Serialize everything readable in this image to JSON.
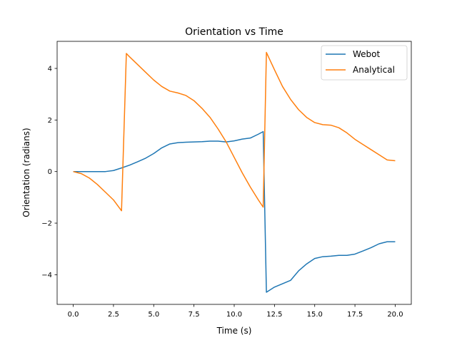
{
  "chart_data": {
    "type": "line",
    "title": "Orientation vs Time",
    "xlabel": "Time (s)",
    "ylabel": "Orientation (radians)",
    "xlim": [
      -1.0,
      21.0
    ],
    "ylim": [
      -5.15,
      5.05
    ],
    "xticks": [
      0.0,
      2.5,
      5.0,
      7.5,
      10.0,
      12.5,
      15.0,
      17.5,
      20.0
    ],
    "xtick_labels": [
      "0.0",
      "2.5",
      "5.0",
      "7.5",
      "10.0",
      "12.5",
      "15.0",
      "17.5",
      "20.0"
    ],
    "yticks": [
      -4,
      -2,
      0,
      2,
      4
    ],
    "ytick_labels": [
      "−4",
      "−2",
      "0",
      "2",
      "4"
    ],
    "grid": false,
    "legend": "top-right",
    "series": [
      {
        "name": "Webot",
        "color": "#1f77b4",
        "points": [
          [
            0,
            0
          ],
          [
            0.5,
            0
          ],
          [
            1,
            0
          ],
          [
            1.5,
            0
          ],
          [
            2,
            0
          ],
          [
            2.5,
            0.04
          ],
          [
            3,
            0.14
          ],
          [
            3.5,
            0.25
          ],
          [
            4,
            0.38
          ],
          [
            4.5,
            0.52
          ],
          [
            5,
            0.7
          ],
          [
            5.5,
            0.92
          ],
          [
            6,
            1.07
          ],
          [
            6.5,
            1.12
          ],
          [
            7,
            1.14
          ],
          [
            7.5,
            1.15
          ],
          [
            8,
            1.16
          ],
          [
            8.5,
            1.18
          ],
          [
            9,
            1.18
          ],
          [
            9.5,
            1.15
          ],
          [
            10,
            1.19
          ],
          [
            10.5,
            1.26
          ],
          [
            11,
            1.3
          ],
          [
            11.5,
            1.45
          ],
          [
            11.8,
            1.55
          ],
          [
            12.0,
            -4.68
          ],
          [
            12.5,
            -4.48
          ],
          [
            13,
            -4.35
          ],
          [
            13.5,
            -4.22
          ],
          [
            14,
            -3.85
          ],
          [
            14.5,
            -3.58
          ],
          [
            15,
            -3.37
          ],
          [
            15.5,
            -3.3
          ],
          [
            16,
            -3.28
          ],
          [
            16.5,
            -3.25
          ],
          [
            17,
            -3.25
          ],
          [
            17.5,
            -3.2
          ],
          [
            18,
            -3.08
          ],
          [
            18.5,
            -2.95
          ],
          [
            19,
            -2.8
          ],
          [
            19.5,
            -2.72
          ],
          [
            20,
            -2.72
          ]
        ]
      },
      {
        "name": "Analytical",
        "color": "#ff7f0e",
        "points": [
          [
            0,
            0
          ],
          [
            0.5,
            -0.08
          ],
          [
            1,
            -0.25
          ],
          [
            1.5,
            -0.5
          ],
          [
            2,
            -0.8
          ],
          [
            2.5,
            -1.1
          ],
          [
            3.0,
            -1.52
          ],
          [
            3.3,
            4.58
          ],
          [
            3.5,
            4.45
          ],
          [
            4,
            4.15
          ],
          [
            4.5,
            3.85
          ],
          [
            5,
            3.55
          ],
          [
            5.5,
            3.3
          ],
          [
            6,
            3.12
          ],
          [
            6.5,
            3.05
          ],
          [
            7,
            2.95
          ],
          [
            7.5,
            2.75
          ],
          [
            8,
            2.45
          ],
          [
            8.5,
            2.1
          ],
          [
            9,
            1.65
          ],
          [
            9.5,
            1.15
          ],
          [
            10,
            0.55
          ],
          [
            10.5,
            -0.05
          ],
          [
            11,
            -0.6
          ],
          [
            11.5,
            -1.1
          ],
          [
            11.8,
            -1.38
          ],
          [
            12.0,
            4.62
          ],
          [
            12.5,
            3.95
          ],
          [
            13,
            3.3
          ],
          [
            13.5,
            2.8
          ],
          [
            14,
            2.4
          ],
          [
            14.5,
            2.1
          ],
          [
            15,
            1.9
          ],
          [
            15.5,
            1.82
          ],
          [
            16,
            1.8
          ],
          [
            16.5,
            1.7
          ],
          [
            17,
            1.5
          ],
          [
            17.5,
            1.25
          ],
          [
            18,
            1.05
          ],
          [
            18.5,
            0.85
          ],
          [
            19,
            0.65
          ],
          [
            19.5,
            0.45
          ],
          [
            20,
            0.42
          ]
        ]
      }
    ]
  }
}
